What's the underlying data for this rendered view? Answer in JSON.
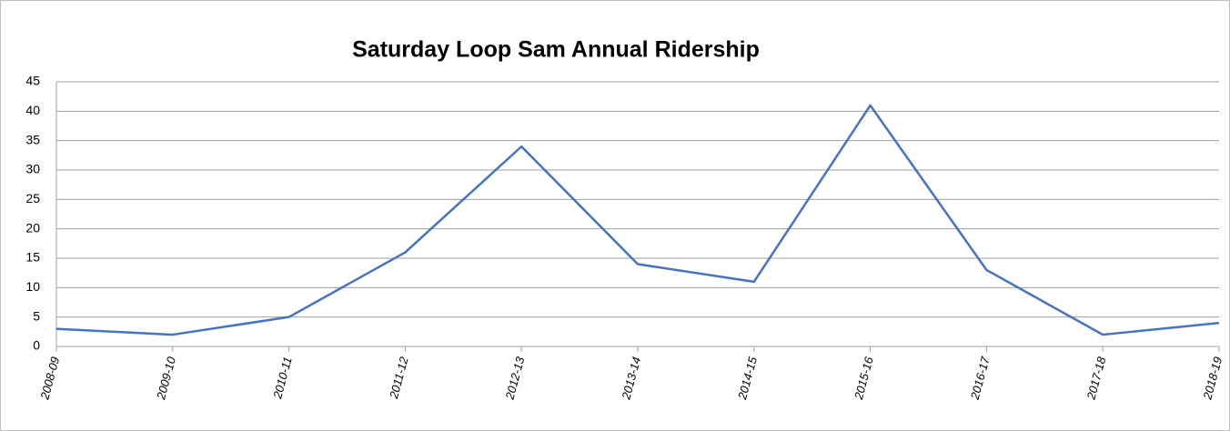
{
  "chart_data": {
    "type": "line",
    "title": "Saturday Loop Sam Annual Ridership",
    "categories": [
      "2008-09",
      "2009-10",
      "2010-11",
      "2011-12",
      "2012-13",
      "2013-14",
      "2014-15",
      "2015-16",
      "2016-17",
      "2017-18",
      "2018-19"
    ],
    "values": [
      3,
      2,
      5,
      16,
      34,
      14,
      11,
      41,
      13,
      2,
      4
    ],
    "color": "#4472c4",
    "ylim": [
      0,
      45
    ],
    "yticks": [
      0,
      5,
      10,
      15,
      20,
      25,
      30,
      35,
      40,
      45
    ],
    "grid": true
  }
}
